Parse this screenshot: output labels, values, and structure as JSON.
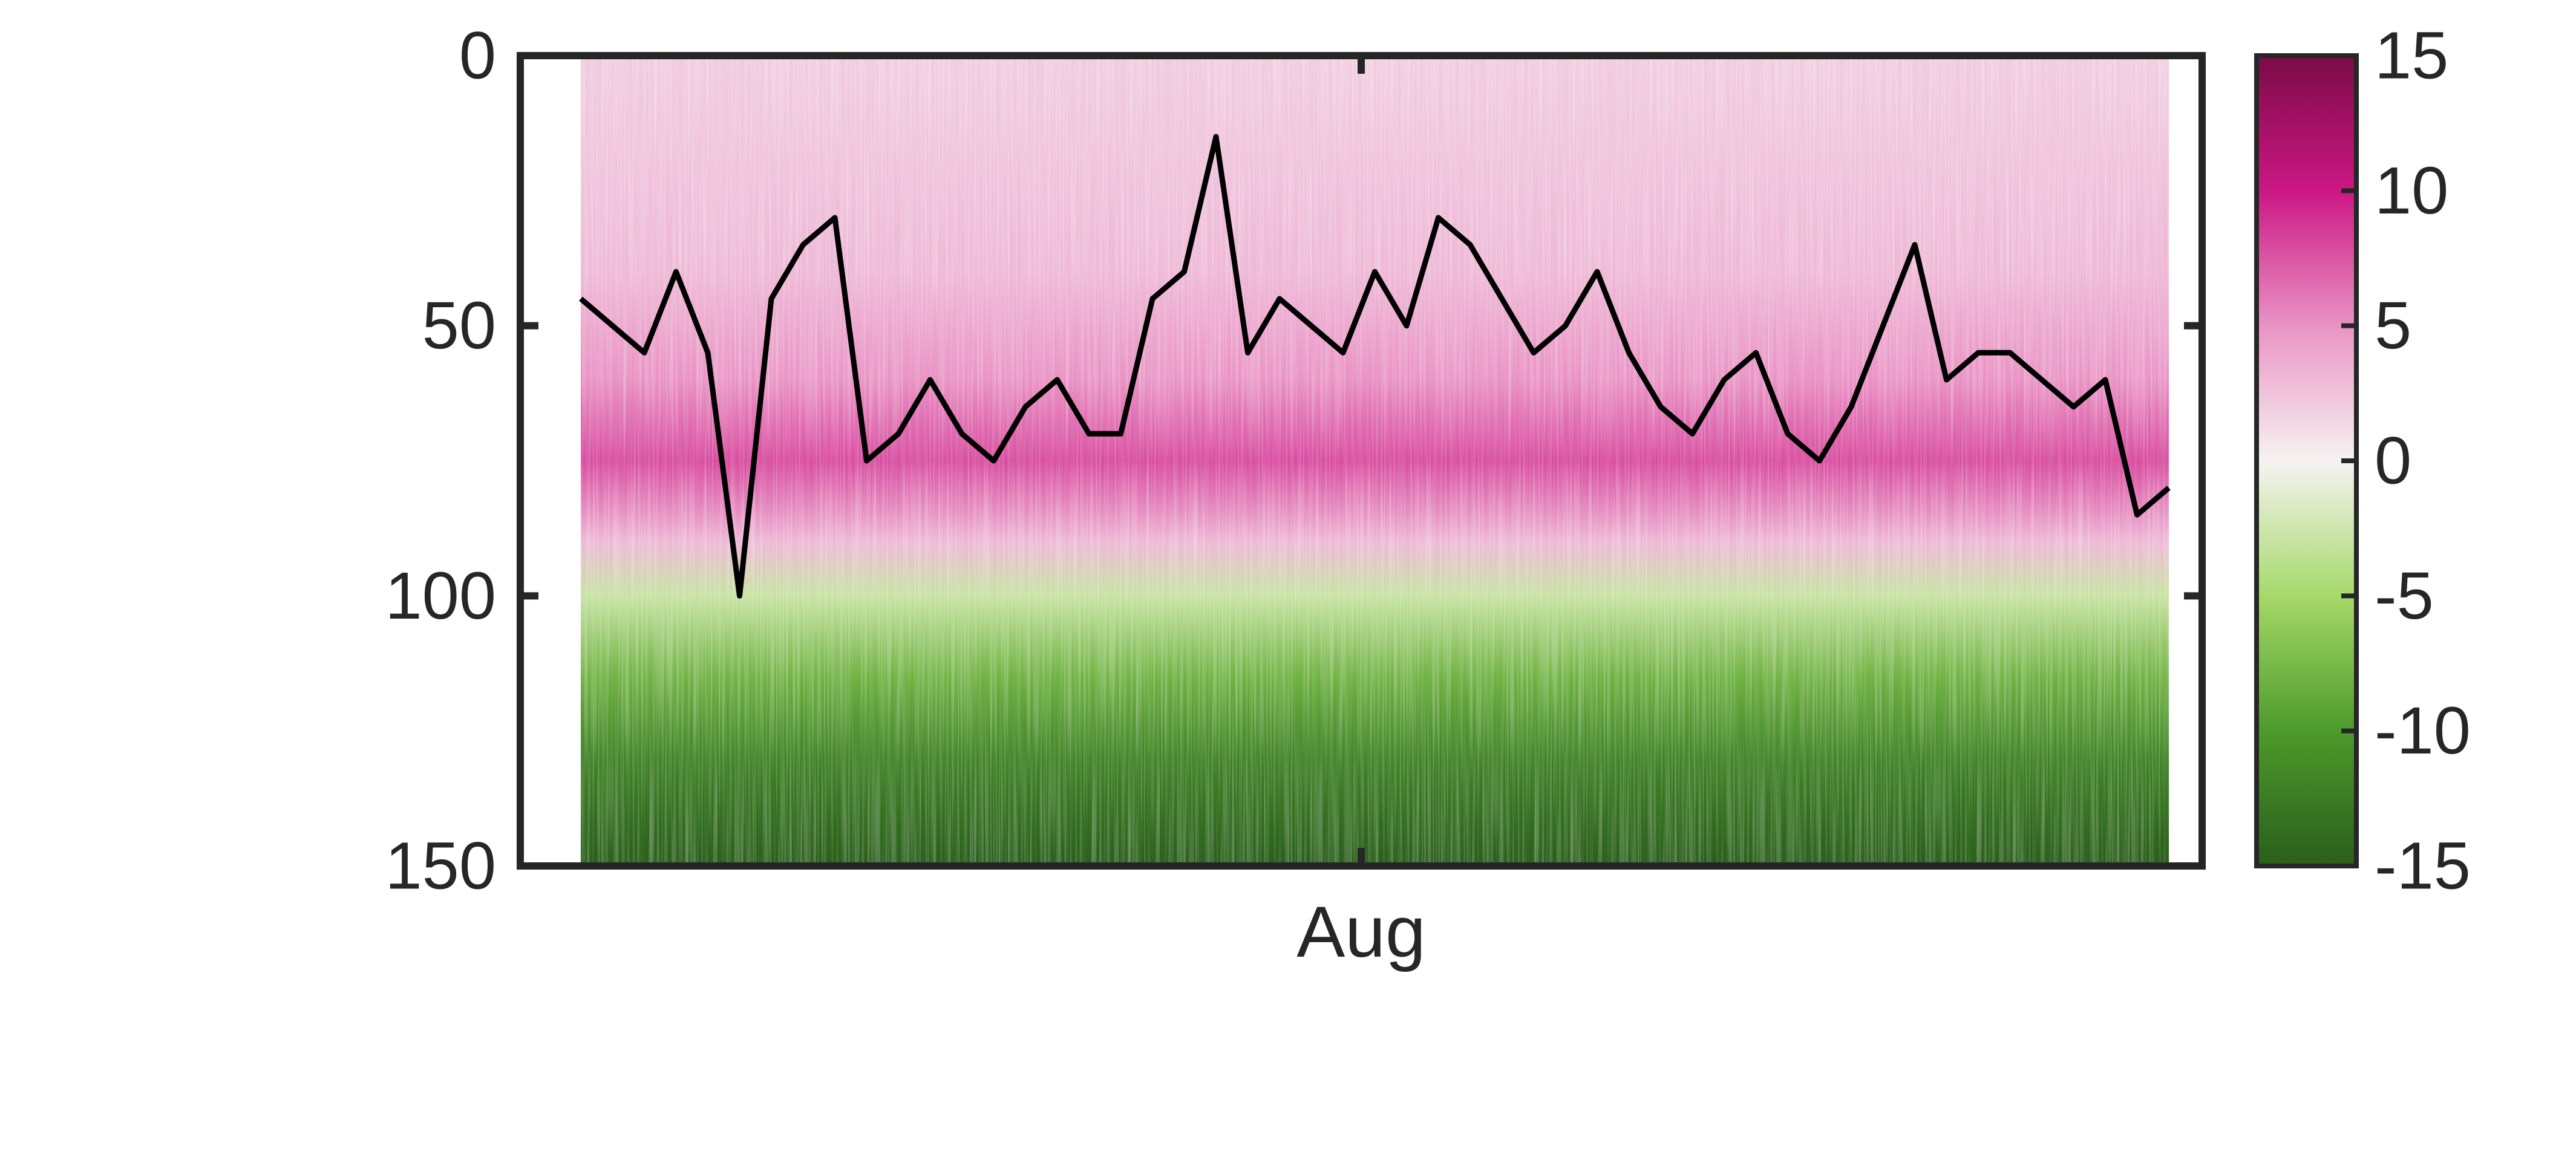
{
  "chart_data": {
    "type": "heatmap",
    "title": "",
    "xlabel": "",
    "ylabel": "",
    "x_tick_labels": [
      "Aug"
    ],
    "xlim_days": [
      0,
      1
    ],
    "ylim": [
      0,
      150
    ],
    "y_reversed": true,
    "y_ticks": [
      0,
      50,
      100,
      150
    ],
    "colorbar": {
      "range": [
        -15,
        15
      ],
      "ticks": [
        15,
        10,
        5,
        0,
        -5,
        -10,
        -15
      ],
      "colormap": "PiYG",
      "colors": {
        "max": "#7a0b45",
        "high": "#cb1784",
        "mid_high": "#e993c4",
        "zero": "#f6f3f2",
        "mid_low": "#a6d96a",
        "low": "#4d9a2b",
        "min": "#2a5e1c"
      }
    },
    "heatmap_profile": {
      "description_values_by_depth": [
        {
          "depth": 0,
          "value": 2
        },
        {
          "depth": 40,
          "value": 3
        },
        {
          "depth": 60,
          "value": 5
        },
        {
          "depth": 75,
          "value": 8
        },
        {
          "depth": 90,
          "value": 3
        },
        {
          "depth": 100,
          "value": -3
        },
        {
          "depth": 115,
          "value": -8
        },
        {
          "depth": 130,
          "value": -12
        },
        {
          "depth": 150,
          "value": -15
        }
      ]
    },
    "series": [
      {
        "type": "line",
        "color": "#000000",
        "x": [
          0.0,
          0.02,
          0.04,
          0.06,
          0.08,
          0.1,
          0.12,
          0.14,
          0.16,
          0.18,
          0.2,
          0.22,
          0.24,
          0.26,
          0.28,
          0.3,
          0.32,
          0.34,
          0.36,
          0.38,
          0.4,
          0.42,
          0.44,
          0.46,
          0.48,
          0.5,
          0.52,
          0.54,
          0.56,
          0.58,
          0.6,
          0.62,
          0.64,
          0.66,
          0.68,
          0.7,
          0.72,
          0.74,
          0.76,
          0.78,
          0.8,
          0.82,
          0.84,
          0.86,
          0.88,
          0.9,
          0.92,
          0.94,
          0.96,
          0.98,
          1.0
        ],
        "y": [
          45,
          50,
          55,
          40,
          55,
          100,
          45,
          35,
          30,
          75,
          70,
          60,
          70,
          75,
          65,
          60,
          70,
          70,
          45,
          40,
          15,
          55,
          45,
          50,
          55,
          40,
          50,
          30,
          35,
          45,
          55,
          50,
          40,
          55,
          65,
          70,
          60,
          55,
          70,
          75,
          65,
          50,
          35,
          60,
          55,
          55,
          60,
          65,
          60,
          85,
          80
        ]
      }
    ]
  }
}
